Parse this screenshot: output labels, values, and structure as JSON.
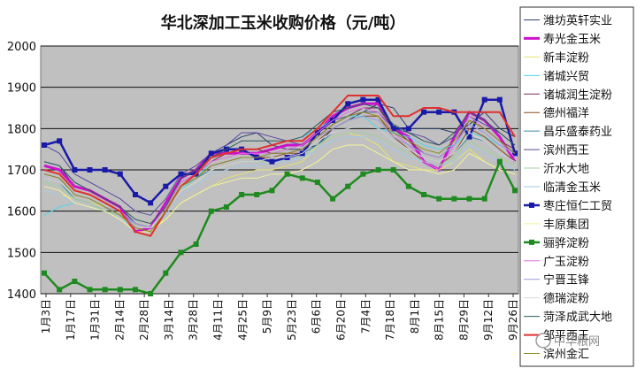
{
  "chart_data": {
    "type": "line",
    "title": "华北深加工玉米收购价格（元/吨）",
    "xlabel": "",
    "ylabel": "",
    "ylim": [
      1400,
      2000
    ],
    "y_ticks": [
      1400,
      1500,
      1600,
      1700,
      1800,
      1900,
      2000
    ],
    "x_tick_labels": [
      "1月3日",
      "1月17日",
      "1月31日",
      "2月14日",
      "2月28日",
      "3月14日",
      "3月28日",
      "4月11日",
      "4月25日",
      "5月9日",
      "5月23日",
      "6月6日",
      "6月20日",
      "7月4日",
      "7月18日",
      "8月1日",
      "8月15日",
      "8月29日",
      "9月12日",
      "9月26日"
    ],
    "grid": "horizontal",
    "legend_position": "right",
    "plot_background": "#c0c0c0",
    "watermark": "中华粮网",
    "series": [
      {
        "name": "潍坊英轩实业",
        "color": "#2a3f6e",
        "marker": "none",
        "width": 1,
        "values": [
          1720,
          1710,
          1660,
          1650,
          1630,
          1610,
          1570,
          1560,
          1620,
          1680,
          1700,
          1740,
          1760,
          1780,
          1790,
          1760,
          1750,
          1750,
          1760,
          1800,
          1820,
          1840,
          1860,
          1850,
          1800,
          1800,
          1800,
          1790,
          1810,
          1840,
          1800,
          1780
        ]
      },
      {
        "name": "寿光金玉米",
        "color": "#cc11cc",
        "marker": "none",
        "width": 3,
        "values": [
          1710,
          1700,
          1660,
          1650,
          1630,
          1610,
          1550,
          1560,
          1620,
          1680,
          1700,
          1740,
          1740,
          1740,
          1740,
          1750,
          1760,
          1760,
          1790,
          1830,
          1850,
          1860,
          1860,
          1800,
          1780,
          1720,
          1700,
          1780,
          1840,
          1820,
          1780,
          1720
        ]
      },
      {
        "name": "新丰淀粉",
        "color": "#e4e46a",
        "marker": "none",
        "width": 1,
        "values": [
          1650,
          1640,
          1630,
          1620,
          1610,
          1590,
          1560,
          1560,
          1580,
          1620,
          1640,
          1660,
          1680,
          1690,
          1700,
          1700,
          1710,
          1720,
          1760,
          1780,
          1790,
          1780,
          1760,
          1720,
          1710,
          1700,
          1700,
          1720,
          1750,
          1720,
          1700,
          1690
        ]
      },
      {
        "name": "诸城兴贸",
        "color": "#4fd6e8",
        "marker": "none",
        "width": 1,
        "values": [
          1590,
          1610,
          1620,
          1610,
          1600,
          1590,
          1570,
          1560,
          1600,
          1650,
          1680,
          1720,
          1740,
          1750,
          1750,
          1760,
          1770,
          1780,
          1800,
          1820,
          1830,
          1830,
          1800,
          1790,
          1780,
          1760,
          1750,
          1760,
          1790,
          1780,
          1760,
          1740
        ]
      },
      {
        "name": "诸城润生淀粉",
        "color": "#7a2a5a",
        "marker": "none",
        "width": 1,
        "values": [
          1700,
          1690,
          1650,
          1640,
          1620,
          1600,
          1570,
          1560,
          1610,
          1670,
          1690,
          1720,
          1740,
          1750,
          1750,
          1740,
          1740,
          1750,
          1780,
          1810,
          1830,
          1850,
          1850,
          1800,
          1770,
          1740,
          1730,
          1760,
          1820,
          1800,
          1770,
          1750
        ]
      },
      {
        "name": "德州福洋",
        "color": "#8b4a1e",
        "marker": "none",
        "width": 1,
        "values": [
          1690,
          1680,
          1640,
          1630,
          1610,
          1590,
          1560,
          1550,
          1600,
          1660,
          1680,
          1710,
          1720,
          1730,
          1730,
          1730,
          1740,
          1740,
          1770,
          1800,
          1820,
          1830,
          1830,
          1780,
          1750,
          1720,
          1710,
          1740,
          1800,
          1780,
          1750,
          1720
        ]
      },
      {
        "name": "昌乐盛泰药业",
        "color": "#3c8aa8",
        "marker": "none",
        "width": 1,
        "values": [
          1680,
          1670,
          1630,
          1620,
          1600,
          1590,
          1560,
          1560,
          1600,
          1660,
          1680,
          1700,
          1710,
          1720,
          1720,
          1730,
          1730,
          1740,
          1760,
          1790,
          1800,
          1810,
          1800,
          1770,
          1750,
          1730,
          1720,
          1740,
          1780,
          1770,
          1740,
          1720
        ]
      },
      {
        "name": "滨州西王",
        "color": "#5a4a9e",
        "marker": "none",
        "width": 1,
        "values": [
          1760,
          1740,
          1690,
          1670,
          1650,
          1630,
          1600,
          1590,
          1630,
          1690,
          1710,
          1740,
          1760,
          1790,
          1790,
          1780,
          1770,
          1760,
          1790,
          1820,
          1830,
          1840,
          1840,
          1800,
          1790,
          1780,
          1760,
          1780,
          1830,
          1810,
          1790,
          1760
        ]
      },
      {
        "name": "沂水大地",
        "color": "#9fd0a0",
        "marker": "none",
        "width": 1,
        "values": [
          1670,
          1660,
          1630,
          1620,
          1600,
          1590,
          1560,
          1560,
          1600,
          1650,
          1670,
          1700,
          1710,
          1720,
          1720,
          1720,
          1730,
          1730,
          1760,
          1780,
          1790,
          1790,
          1780,
          1760,
          1740,
          1720,
          1710,
          1730,
          1770,
          1750,
          1730,
          1710
        ]
      },
      {
        "name": "临清金玉米",
        "color": "#a0c8e8",
        "marker": "none",
        "width": 1,
        "values": [
          1650,
          1640,
          1620,
          1610,
          1600,
          1580,
          1560,
          1560,
          1590,
          1640,
          1660,
          1690,
          1700,
          1710,
          1710,
          1720,
          1720,
          1730,
          1750,
          1770,
          1780,
          1780,
          1770,
          1750,
          1730,
          1720,
          1710,
          1720,
          1760,
          1740,
          1720,
          1700
        ]
      },
      {
        "name": "枣庄恒仁工贸",
        "color": "#1a1aa8",
        "marker": "square",
        "width": 2.5,
        "values": [
          1760,
          1770,
          1700,
          1700,
          1700,
          1690,
          1640,
          1620,
          1660,
          1690,
          1690,
          1740,
          1750,
          1750,
          1730,
          1720,
          1730,
          1740,
          1790,
          1820,
          1860,
          1870,
          1870,
          1800,
          1800,
          1840,
          1840,
          1840,
          1780,
          1870,
          1870,
          1740
        ]
      },
      {
        "name": "丰原集团",
        "color": "#f4f49a",
        "marker": "none",
        "width": 1,
        "values": [
          1660,
          1650,
          1620,
          1610,
          1600,
          1580,
          1550,
          1550,
          1580,
          1620,
          1640,
          1660,
          1670,
          1680,
          1680,
          1690,
          1690,
          1700,
          1720,
          1750,
          1760,
          1760,
          1740,
          1720,
          1700,
          1700,
          1690,
          1700,
          1740,
          1720,
          1700,
          1690
        ]
      },
      {
        "name": "骊骅淀粉",
        "color": "#1f8a1f",
        "marker": "square",
        "width": 2.5,
        "values": [
          1450,
          1410,
          1430,
          1410,
          1410,
          1410,
          1410,
          1400,
          1450,
          1500,
          1520,
          1600,
          1610,
          1640,
          1640,
          1650,
          1690,
          1680,
          1670,
          1630,
          1660,
          1690,
          1700,
          1700,
          1660,
          1640,
          1630,
          1630,
          1630,
          1630,
          1720,
          1650
        ]
      },
      {
        "name": "广玉淀粉",
        "color": "#e070e0",
        "marker": "none",
        "width": 1,
        "values": [
          1700,
          1690,
          1650,
          1640,
          1620,
          1600,
          1560,
          1560,
          1610,
          1670,
          1690,
          1720,
          1730,
          1740,
          1740,
          1740,
          1750,
          1760,
          1790,
          1820,
          1840,
          1850,
          1840,
          1790,
          1760,
          1720,
          1700,
          1760,
          1830,
          1800,
          1770,
          1730
        ]
      },
      {
        "name": "宁晋玉锋",
        "color": "#9a9ae0",
        "marker": "none",
        "width": 1,
        "values": [
          1690,
          1680,
          1640,
          1630,
          1610,
          1600,
          1570,
          1560,
          1600,
          1660,
          1680,
          1710,
          1720,
          1730,
          1730,
          1740,
          1740,
          1750,
          1780,
          1800,
          1820,
          1830,
          1820,
          1780,
          1760,
          1740,
          1730,
          1760,
          1810,
          1790,
          1760,
          1740
        ]
      },
      {
        "name": "德瑞淀粉",
        "color": "#d8d8d8",
        "marker": "none",
        "width": 1,
        "values": [
          1680,
          1670,
          1640,
          1630,
          1610,
          1590,
          1560,
          1560,
          1600,
          1650,
          1670,
          1700,
          1710,
          1720,
          1720,
          1730,
          1730,
          1740,
          1770,
          1790,
          1800,
          1810,
          1800,
          1770,
          1750,
          1730,
          1720,
          1740,
          1790,
          1770,
          1740,
          1720
        ]
      },
      {
        "name": "菏泽成武大地",
        "color": "#2a5a5a",
        "marker": "none",
        "width": 1,
        "values": [
          1720,
          1710,
          1670,
          1650,
          1630,
          1610,
          1580,
          1570,
          1610,
          1680,
          1700,
          1730,
          1750,
          1770,
          1770,
          1770,
          1770,
          1780,
          1810,
          1840,
          1850,
          1860,
          1850,
          1810,
          1790,
          1770,
          1760,
          1790,
          1840,
          1820,
          1790,
          1760
        ]
      },
      {
        "name": "邹平西王",
        "color": "#e03030",
        "marker": "none",
        "width": 2,
        "values": [
          1700,
          1690,
          1650,
          1640,
          1620,
          1600,
          1550,
          1540,
          1600,
          1660,
          1690,
          1730,
          1740,
          1750,
          1750,
          1760,
          1770,
          1770,
          1800,
          1840,
          1880,
          1880,
          1880,
          1830,
          1830,
          1850,
          1850,
          1840,
          1840,
          1840,
          1840,
          1780
        ]
      },
      {
        "name": "滨州金汇",
        "color": "#8a8a20",
        "marker": "none",
        "width": 1,
        "values": [
          1690,
          1680,
          1640,
          1630,
          1610,
          1590,
          1560,
          1550,
          1600,
          1660,
          1680,
          1710,
          1720,
          1730,
          1730,
          1740,
          1740,
          1750,
          1780,
          1810,
          1830,
          1840,
          1830,
          1790,
          1770,
          1750,
          1740,
          1770,
          1820,
          1800,
          1770,
          1740
        ]
      }
    ]
  }
}
